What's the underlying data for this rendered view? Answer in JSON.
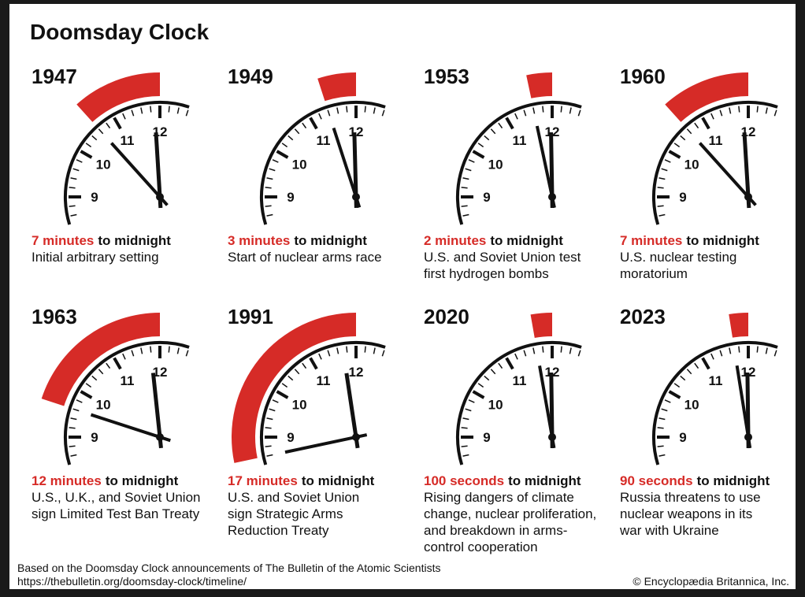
{
  "title": "Doomsday Clock",
  "dial_labels": [
    "9",
    "10",
    "11",
    "12"
  ],
  "panels": [
    {
      "year": "1947",
      "amount": {
        "value": 7,
        "label": "7 minutes"
      },
      "suffix": "to midnight",
      "description": [
        "Initial arbitrary setting"
      ]
    },
    {
      "year": "1949",
      "amount": {
        "value": 3,
        "label": "3 minutes"
      },
      "suffix": "to midnight",
      "description": [
        "Start of nuclear arms race"
      ]
    },
    {
      "year": "1953",
      "amount": {
        "value": 2,
        "label": "2 minutes"
      },
      "suffix": "to midnight",
      "description": [
        "U.S. and Soviet Union test",
        "first hydrogen bombs"
      ]
    },
    {
      "year": "1960",
      "amount": {
        "value": 7,
        "label": "7 minutes"
      },
      "suffix": "to midnight",
      "description": [
        "U.S. nuclear testing",
        "moratorium"
      ]
    },
    {
      "year": "1963",
      "amount": {
        "value": 12,
        "label": "12 minutes"
      },
      "suffix": "to midnight",
      "description": [
        "U.S., U.K., and Soviet Union",
        "sign Limited Test Ban Treaty"
      ]
    },
    {
      "year": "1991",
      "amount": {
        "value": 17,
        "label": "17 minutes"
      },
      "suffix": "to midnight",
      "description": [
        "U.S. and Soviet Union",
        "sign Strategic Arms",
        "Reduction Treaty"
      ]
    },
    {
      "year": "2020",
      "amount": {
        "value": 1.66667,
        "label": "100 seconds"
      },
      "suffix": "to midnight",
      "description": [
        "Rising dangers of climate",
        "change, nuclear proliferation,",
        "and breakdown in arms-",
        "control cooperation"
      ]
    },
    {
      "year": "2023",
      "amount": {
        "value": 1.5,
        "label": "90 seconds"
      },
      "suffix": "to midnight",
      "description": [
        "Russia threatens to use",
        "nuclear weapons in its",
        "war with Ukraine"
      ]
    }
  ],
  "footer": {
    "source": [
      "Based on the Doomsday Clock announcements of The Bulletin of the Atomic Scientists",
      "https://thebulletin.org/doomsday-clock/timeline/"
    ],
    "copyright": "© Encyclopædia Britannica, Inc."
  }
}
